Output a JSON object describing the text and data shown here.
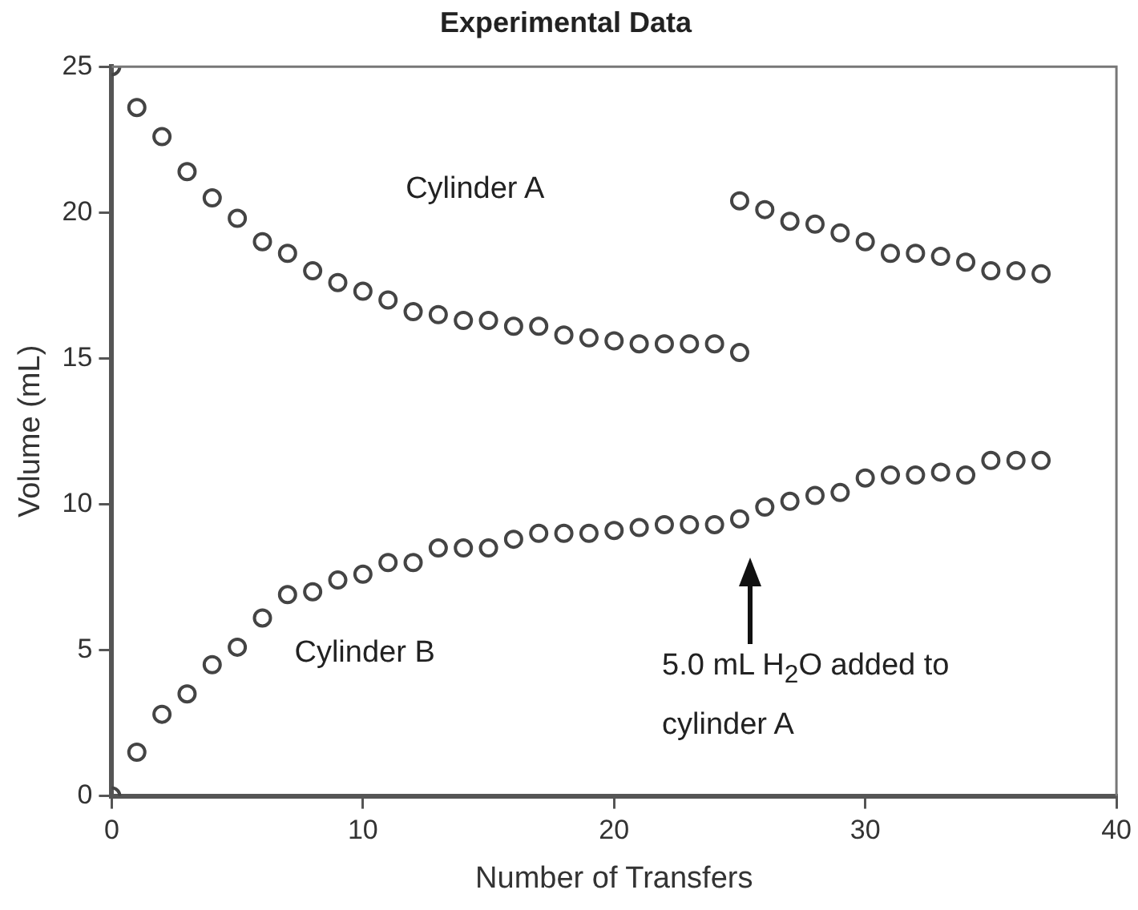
{
  "chart_data": {
    "type": "scatter",
    "title": "Experimental Data",
    "xlabel": "Number of Transfers",
    "ylabel": "Volume (mL)",
    "xlim": [
      0,
      40
    ],
    "xticks": [
      0,
      10,
      20,
      30,
      40
    ],
    "ylim": [
      0,
      25
    ],
    "yticks": [
      0,
      5,
      10,
      15,
      20,
      25
    ],
    "grid": false,
    "legend": false,
    "marker": "circle",
    "series": [
      {
        "name": "Cylinder A",
        "color": "#444444",
        "x": [
          0,
          1,
          2,
          3,
          4,
          5,
          6,
          7,
          8,
          9,
          10,
          11,
          12,
          13,
          14,
          15,
          16,
          17,
          18,
          19,
          20,
          21,
          22,
          23,
          24,
          25,
          25,
          26,
          27,
          28,
          29,
          30,
          31,
          32,
          33,
          34,
          35,
          36,
          37
        ],
        "values": [
          25,
          23.6,
          22.6,
          21.4,
          20.5,
          19.8,
          19.0,
          18.6,
          18.0,
          17.6,
          17.3,
          17.0,
          16.6,
          16.5,
          16.3,
          16.3,
          16.1,
          16.1,
          15.8,
          15.7,
          15.6,
          15.5,
          15.5,
          15.5,
          15.5,
          15.2,
          20.4,
          20.1,
          19.7,
          19.6,
          19.3,
          19.0,
          18.6,
          18.6,
          18.5,
          18.3,
          18.0,
          18.0,
          17.9
        ]
      },
      {
        "name": "Cylinder B",
        "color": "#444444",
        "x": [
          0,
          1,
          2,
          3,
          4,
          5,
          6,
          7,
          8,
          9,
          10,
          11,
          12,
          13,
          14,
          15,
          16,
          17,
          18,
          19,
          20,
          21,
          22,
          23,
          24,
          25,
          26,
          27,
          28,
          29,
          30,
          31,
          32,
          33,
          34,
          35,
          36,
          37
        ],
        "values": [
          0,
          1.5,
          2.8,
          3.5,
          4.5,
          5.1,
          6.1,
          6.9,
          7.0,
          7.4,
          7.6,
          8.0,
          8.0,
          8.5,
          8.5,
          8.5,
          8.8,
          9.0,
          9.0,
          9.0,
          9.1,
          9.2,
          9.3,
          9.3,
          9.3,
          9.5,
          9.9,
          10.1,
          10.3,
          10.4,
          10.9,
          11.0,
          11.0,
          11.1,
          11.0,
          11.5,
          11.5,
          11.5
        ]
      }
    ],
    "annotations": [
      "5.0 mL H$_{2}$O added to cylinder A"
    ]
  }
}
